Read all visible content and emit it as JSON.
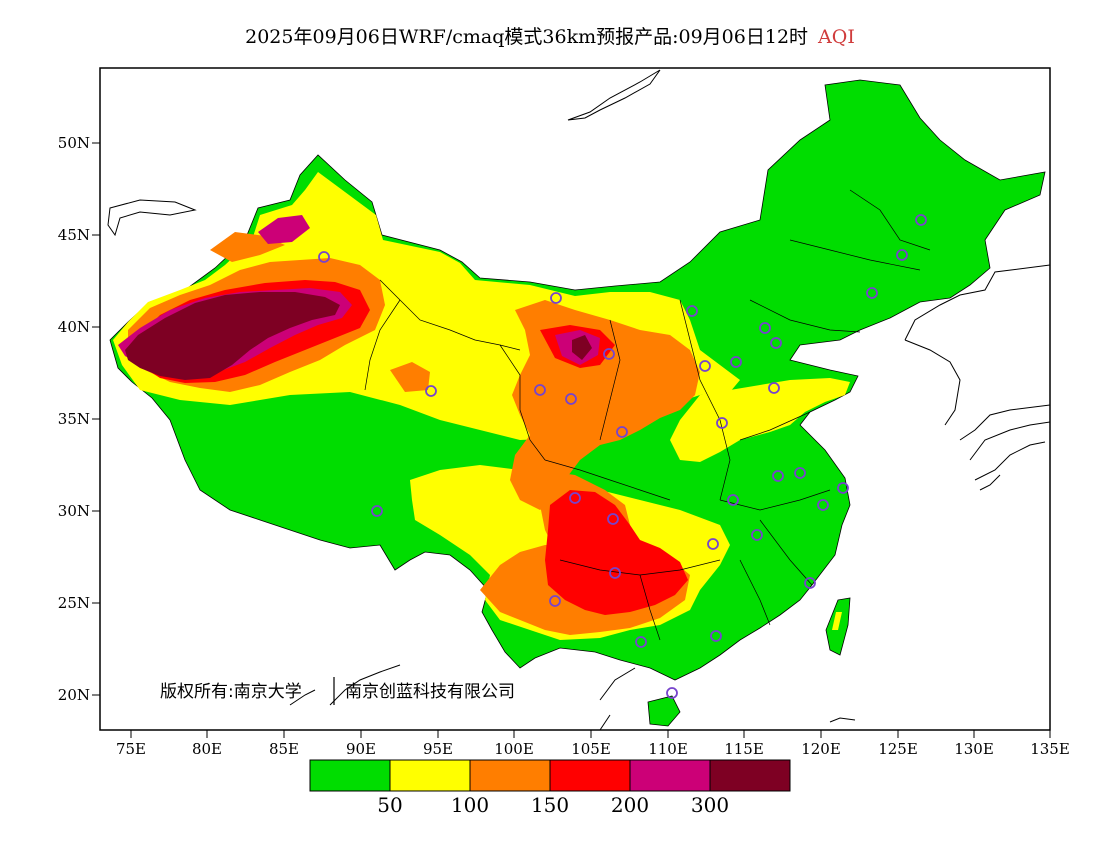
{
  "title": {
    "text": "2025年09月06日WRF/cmaq模式36km预报产品:09月06日12时",
    "label": "AQI",
    "label_color": "#d03c3c"
  },
  "copyright": {
    "prefix": "版权所有:南京大学",
    "second": "南京创蓝科技有限公司"
  },
  "axes": {
    "lat_labels": [
      "20N",
      "25N",
      "30N",
      "35N",
      "40N",
      "45N",
      "50N"
    ],
    "lon_labels": [
      "75E",
      "80E",
      "85E",
      "90E",
      "95E",
      "100E",
      "105E",
      "110E",
      "115E",
      "120E",
      "125E",
      "130E",
      "135E"
    ]
  },
  "legend": {
    "colors": [
      "#00dd00",
      "#ffff00",
      "#ff7e00",
      "#ff0000",
      "#cc0077",
      "#7e0023"
    ],
    "labels": [
      "50",
      "100",
      "150",
      "200",
      "300"
    ]
  },
  "map_colors": {
    "good": "#00dd00",
    "moderate": "#ffff00",
    "usg": "#ff7e00",
    "unhealthy": "#ff0000",
    "very_unhealthy": "#cc0077",
    "hazardous": "#7e0023",
    "marker": "#7744cc",
    "boundary": "#000000"
  }
}
